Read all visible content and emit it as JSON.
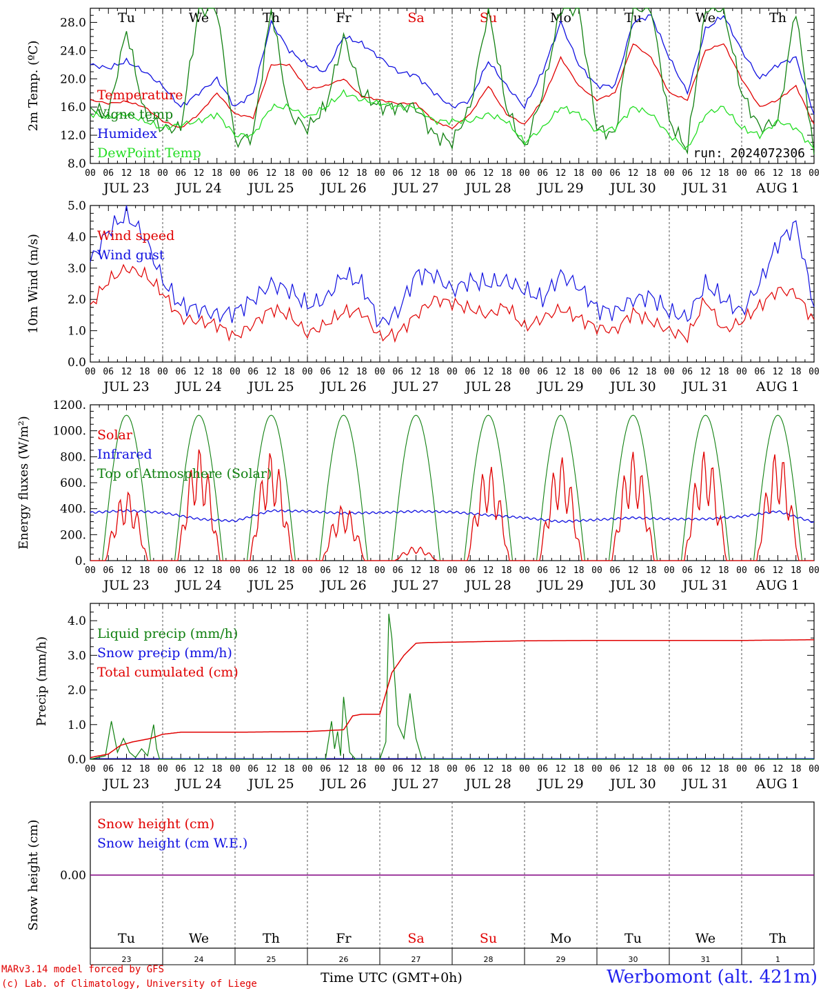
{
  "credits": {
    "line1": "MARv3.14 model forced by GFS",
    "line2": "(c) Lab. of Climatology, University of Liege"
  },
  "location": "Werbomont (alt. 421m)",
  "x_axis_title": "Time UTC (GMT+0h)",
  "run_label": "run: 2024072306",
  "colors": {
    "red": "#e00000",
    "green": "#108010",
    "blue": "#1010e0",
    "lightgreen": "#22dd22",
    "purple": "#800080",
    "grid": "#555555"
  },
  "hour_ticks": [
    "00",
    "06",
    "12",
    "18"
  ],
  "end_tick": "00",
  "dates": [
    "JUL 23",
    "JUL 24",
    "JUL 25",
    "JUL 26",
    "JUL 27",
    "JUL 28",
    "JUL 29",
    "JUL 30",
    "JUL 31",
    "AUG  1"
  ],
  "weekdays": [
    "Tu",
    "We",
    "Th",
    "Fr",
    "Sa",
    "Su",
    "Mo",
    "Tu",
    "We",
    "Th"
  ],
  "weekend_index": [
    4,
    5
  ],
  "day_numbers": [
    "23",
    "24",
    "25",
    "26",
    "27",
    "28",
    "29",
    "30",
    "31",
    "1"
  ],
  "chart_data": [
    {
      "type": "line",
      "ylabel": "2m Temp. (ºC)",
      "ylim": [
        8,
        30
      ],
      "yticks": [
        8,
        12,
        16,
        20,
        24,
        28
      ],
      "ytick_labels": [
        "8.0",
        "12.0",
        "16.0",
        "20.0",
        "24.0",
        "28.0"
      ],
      "legend": [
        {
          "name": "Temperature",
          "color": "red"
        },
        {
          "name": "Vigne temp",
          "color": "green"
        },
        {
          "name": "Humidex",
          "color": "blue"
        },
        {
          "name": "DewPoint Temp",
          "color": "lightgreen"
        }
      ],
      "x_hours": [
        0,
        6,
        12,
        18,
        24,
        30,
        36,
        42,
        48,
        54,
        60,
        66,
        72,
        78,
        84,
        90,
        96,
        102,
        108,
        114,
        120,
        126,
        132,
        138,
        144,
        150,
        156,
        162,
        168,
        174,
        180,
        186,
        192,
        198,
        204,
        210,
        216,
        222,
        228,
        234,
        240
      ],
      "series": [
        {
          "name": "Humidex",
          "color": "blue",
          "values": [
            22,
            21.5,
            22.5,
            21,
            19,
            16,
            18,
            20,
            16,
            18,
            28,
            24,
            22,
            21,
            26,
            25,
            23,
            21,
            20.5,
            18,
            16,
            17,
            22.5,
            19,
            16,
            21,
            28,
            22,
            19,
            19,
            28,
            29,
            23,
            18,
            27,
            29,
            24,
            20,
            22,
            23,
            15
          ]
        },
        {
          "name": "Temperature",
          "color": "red",
          "values": [
            17,
            16.5,
            16.8,
            16,
            14,
            13,
            15,
            18,
            15,
            14.5,
            22,
            22,
            18.5,
            19,
            20,
            17.5,
            17,
            16.5,
            16.5,
            14,
            13,
            15,
            19,
            15,
            13.5,
            17,
            23,
            19,
            17,
            18,
            25,
            23,
            18,
            17,
            24,
            25,
            20,
            16,
            17,
            19,
            13.5
          ]
        },
        {
          "name": "Vigne temp",
          "color": "green",
          "values": [
            16,
            15,
            27,
            15,
            13,
            13,
            30,
            30,
            11,
            12,
            30,
            15,
            13,
            16,
            26,
            18,
            16,
            16,
            16,
            12,
            11,
            16,
            30,
            16,
            10,
            18,
            30,
            30,
            13,
            12,
            30,
            30,
            14,
            10,
            30,
            30,
            18,
            13,
            14,
            30,
            9
          ]
        },
        {
          "name": "DewPoint Temp",
          "color": "lightgreen",
          "values": [
            15,
            14.5,
            15,
            14,
            13,
            13.5,
            14,
            15,
            12,
            12,
            16,
            16,
            14.5,
            16,
            18,
            17,
            16.5,
            16,
            16,
            14,
            14,
            14,
            15,
            14,
            11,
            13,
            16,
            15,
            12.5,
            13,
            16,
            15,
            12,
            10,
            15,
            16,
            13,
            12,
            14,
            13,
            10
          ]
        }
      ]
    },
    {
      "type": "line",
      "ylabel": "10m Wind (m/s)",
      "ylim": [
        0,
        5
      ],
      "yticks": [
        0,
        1,
        2,
        3,
        4,
        5
      ],
      "ytick_labels": [
        "0.0",
        "1.0",
        "2.0",
        "3.0",
        "4.0",
        "5.0"
      ],
      "legend": [
        {
          "name": "Wind speed",
          "color": "red"
        },
        {
          "name": "Wind gust",
          "color": "blue"
        }
      ],
      "x_hours": [
        0,
        6,
        12,
        18,
        24,
        30,
        36,
        42,
        48,
        54,
        60,
        66,
        72,
        78,
        84,
        90,
        96,
        102,
        108,
        114,
        120,
        126,
        132,
        138,
        144,
        150,
        156,
        162,
        168,
        174,
        180,
        186,
        192,
        198,
        204,
        210,
        216,
        222,
        228,
        234,
        240
      ],
      "series": [
        {
          "name": "Wind gust",
          "color": "blue",
          "values": [
            3.2,
            4.2,
            4.7,
            4,
            2.6,
            1.8,
            1.7,
            1.5,
            1.6,
            2,
            2.5,
            2.3,
            1.8,
            2,
            2.8,
            2.5,
            1.2,
            1.6,
            2.8,
            2.8,
            2.3,
            2.6,
            2.5,
            2.6,
            2.3,
            2,
            2.8,
            2.4,
            1.7,
            1.6,
            2,
            2.1,
            1.6,
            1.4,
            2.5,
            2,
            1.6,
            2.5,
            3.8,
            4.4,
            1.8
          ]
        },
        {
          "name": "Wind speed",
          "color": "red",
          "values": [
            1.8,
            2.6,
            3,
            2.8,
            2.2,
            1.4,
            1.3,
            1.2,
            0.8,
            1.2,
            1.7,
            1.5,
            0.9,
            1.2,
            1.6,
            1.6,
            0.8,
            0.9,
            1.5,
            2,
            1.9,
            1.7,
            1.5,
            1.8,
            1.1,
            1.4,
            1.7,
            1.4,
            1.1,
            1,
            1.6,
            1.3,
            1,
            0.8,
            2,
            1,
            1.3,
            1.8,
            2.3,
            2.2,
            1.3
          ]
        }
      ]
    },
    {
      "type": "line",
      "ylabel": "Energy fluxes (W/m²)",
      "ylim": [
        0,
        1200
      ],
      "yticks": [
        0,
        200,
        400,
        600,
        800,
        1000,
        1200
      ],
      "ytick_labels": [
        "0.",
        "200.",
        "400.",
        "600.",
        "800.",
        "1000.",
        "1200."
      ],
      "legend": [
        {
          "name": "Solar",
          "color": "red"
        },
        {
          "name": "Infrared",
          "color": "blue"
        },
        {
          "name": "Top of Atmosphere (Solar)",
          "color": "green"
        }
      ],
      "toa_peak": 1120,
      "solar_peaks": [
        540,
        870,
        840,
        430,
        110,
        740,
        800,
        840,
        850,
        850
      ],
      "infrared_x_hours": [
        0,
        12,
        24,
        36,
        48,
        60,
        72,
        84,
        96,
        108,
        120,
        132,
        144,
        156,
        168,
        180,
        192,
        204,
        216,
        228,
        240
      ],
      "infrared_values": [
        370,
        385,
        370,
        320,
        305,
        385,
        380,
        365,
        370,
        380,
        375,
        350,
        330,
        300,
        315,
        330,
        320,
        320,
        340,
        380,
        295
      ]
    },
    {
      "type": "line",
      "ylabel": "Precip (mm/h)",
      "ylim": [
        0,
        4.5
      ],
      "yticks": [
        0,
        1,
        2,
        3,
        4
      ],
      "ytick_labels": [
        "0.0",
        "1.0",
        "2.0",
        "3.0",
        "4.0"
      ],
      "legend": [
        {
          "name": "Liquid precip (mm/h)",
          "color": "green"
        },
        {
          "name": "Snow precip (mm/h)",
          "color": "blue"
        },
        {
          "name": "Total cumulated (cm)",
          "color": "red"
        }
      ],
      "cumulated_x_hours": [
        0,
        6,
        10,
        14,
        20,
        24,
        30,
        48,
        72,
        84,
        87,
        90,
        96,
        100,
        104,
        108,
        112,
        120,
        144,
        168,
        192,
        216,
        240
      ],
      "cumulated_values": [
        0.05,
        0.15,
        0.4,
        0.5,
        0.6,
        0.72,
        0.78,
        0.78,
        0.8,
        0.85,
        1.25,
        1.3,
        1.3,
        2.5,
        3,
        3.35,
        3.37,
        3.38,
        3.42,
        3.43,
        3.43,
        3.43,
        3.45
      ],
      "liquid_x_hours": [
        0,
        5,
        7,
        9,
        11,
        13,
        15,
        17,
        19,
        21,
        22,
        23,
        24,
        78,
        80,
        81,
        82,
        83,
        84,
        86,
        88,
        96,
        98,
        99,
        100,
        102,
        104,
        106,
        108,
        110,
        240
      ],
      "liquid_values": [
        0,
        0.1,
        1.1,
        0.2,
        0.6,
        0.2,
        0.05,
        0.3,
        0.1,
        1,
        0.3,
        0,
        0,
        0,
        1.1,
        0.3,
        0.8,
        0.1,
        1.8,
        0.2,
        0,
        0,
        0.5,
        4.2,
        3.5,
        1,
        0.6,
        1.9,
        0.6,
        0,
        0
      ]
    },
    {
      "type": "line",
      "ylabel": "Snow height (cm)",
      "ylim": [
        -1,
        1
      ],
      "yticks": [
        0
      ],
      "ytick_labels": [
        "0.00"
      ],
      "legend": [
        {
          "name": "Snow height (cm)",
          "color": "red"
        },
        {
          "name": "Snow height (cm W.E.)",
          "color": "blue"
        }
      ],
      "values": [
        0,
        0
      ]
    }
  ]
}
